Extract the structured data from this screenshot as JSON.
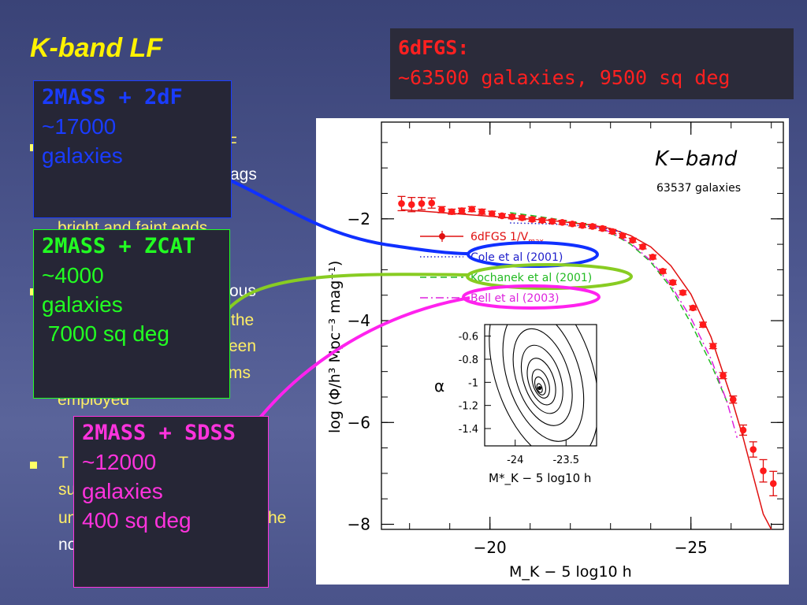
{
  "slide": {
    "title": "K-band LF"
  },
  "survey_box": {
    "title": "6dFGS:",
    "stats": "~63500 galaxies, 9500 sq deg"
  },
  "background_text": {
    "line_a": "F",
    "line_b": "ags",
    "line_c": "bright and faint ends",
    "line_d": "ous",
    "line_e": "the",
    "line_f": "een",
    "line_g": "ms",
    "line_h": "employed",
    "line_i": "T",
    "line_j": "su",
    "line_k": "un",
    "line_l": "he",
    "line_m": "no"
  },
  "callouts": [
    {
      "id": "sdf",
      "heading": "2MASS + 2dF",
      "line1": "~17000",
      "line2": "galaxies",
      "line3": "",
      "color": "#1a3cff"
    },
    {
      "id": "zcat",
      "heading": "2MASS + ZCAT",
      "line1": "~4000",
      "line2": "galaxies",
      "line3": " 7000 sq deg",
      "color": "#22ff22"
    },
    {
      "id": "sdss",
      "heading": "2MASS + SDSS",
      "line1": "~12000",
      "line2": "galaxies",
      "line3": "400 sq deg",
      "color": "#ff33dd"
    }
  ],
  "chart_data": {
    "type": "line",
    "title": "K−band",
    "subtitle": "63537 galaxies",
    "xlabel": "M_K − 5 log10 h",
    "ylabel": "log (Φ/h³ Mpc⁻³ mag⁻¹)",
    "xlim": [
      -17.3,
      -27.3
    ],
    "ylim": [
      -8.1,
      -0.1
    ],
    "x_ticks": [
      {
        "v": -20,
        "label": "−20"
      },
      {
        "v": -25,
        "label": "−25"
      }
    ],
    "y_ticks": [
      {
        "v": -2,
        "label": "−2"
      },
      {
        "v": -4,
        "label": "−4"
      },
      {
        "v": -6,
        "label": "−6"
      },
      {
        "v": -8,
        "label": "−8"
      }
    ],
    "legend": [
      {
        "label": "6dFGS 1/V",
        "sub": "max",
        "color": "#e01010",
        "style": "points"
      },
      {
        "label": "Cole et al (2001)",
        "color": "#2020cc",
        "style": "dotted"
      },
      {
        "label": "Kochanek et al (2001)",
        "color": "#22bb22",
        "style": "dashed"
      },
      {
        "label": "Bell et al (2003)",
        "color": "#dd22dd",
        "style": "dashdot"
      }
    ],
    "points": {
      "name": "6dFGS 1/V max",
      "x": [
        -17.8,
        -18.05,
        -18.3,
        -18.55,
        -18.8,
        -19.05,
        -19.3,
        -19.55,
        -19.8,
        -20.05,
        -20.3,
        -20.55,
        -20.8,
        -21.05,
        -21.3,
        -21.55,
        -21.8,
        -22.05,
        -22.3,
        -22.55,
        -22.8,
        -23.05,
        -23.3,
        -23.55,
        -23.8,
        -24.05,
        -24.3,
        -24.55,
        -24.8,
        -25.05,
        -25.3,
        -25.55,
        -25.8,
        -26.05,
        -26.3,
        -26.55,
        -26.8,
        -27.05
      ],
      "y": [
        -1.7,
        -1.72,
        -1.7,
        -1.69,
        -1.82,
        -1.86,
        -1.84,
        -1.81,
        -1.86,
        -1.9,
        -1.94,
        -1.96,
        -1.98,
        -2.01,
        -2.03,
        -2.05,
        -2.07,
        -2.1,
        -2.13,
        -2.15,
        -2.19,
        -2.25,
        -2.33,
        -2.42,
        -2.55,
        -2.75,
        -3.03,
        -3.25,
        -3.45,
        -3.75,
        -4.08,
        -4.5,
        -5.08,
        -5.55,
        -6.15,
        -6.53,
        -6.95,
        -7.2
      ],
      "err": [
        0.14,
        0.14,
        0.12,
        0.1,
        0.06,
        0.05,
        0.05,
        0.05,
        0.05,
        0.05,
        0.04,
        0.04,
        0.04,
        0.04,
        0.04,
        0.04,
        0.04,
        0.04,
        0.04,
        0.04,
        0.04,
        0.04,
        0.04,
        0.04,
        0.04,
        0.04,
        0.04,
        0.04,
        0.04,
        0.04,
        0.05,
        0.05,
        0.06,
        0.07,
        0.1,
        0.15,
        0.22,
        0.24
      ]
    },
    "series": [
      {
        "name": "6dFGS fit",
        "color": "#e01010",
        "style": "solid",
        "x": [
          -17.8,
          -18.5,
          -19.5,
          -20.5,
          -21.5,
          -22.5,
          -23.0,
          -23.5,
          -24.0,
          -24.5,
          -25.0,
          -25.5,
          -26.0,
          -26.3,
          -26.6,
          -26.8,
          -27.0
        ],
        "y": [
          -1.82,
          -1.86,
          -1.92,
          -1.98,
          -2.03,
          -2.12,
          -2.19,
          -2.33,
          -2.55,
          -2.92,
          -3.48,
          -4.32,
          -5.5,
          -6.3,
          -7.2,
          -7.8,
          -8.1
        ]
      },
      {
        "name": "Cole et al (2001)",
        "color": "#2020cc",
        "style": "dotted",
        "x": [
          -20.5,
          -21.0,
          -21.5,
          -22.0,
          -22.5,
          -23.0,
          -23.3
        ],
        "y": [
          -2.08,
          -2.09,
          -2.1,
          -2.12,
          -2.15,
          -2.21,
          -2.26
        ]
      },
      {
        "name": "Kochanek et al (2001)",
        "color": "#22bb22",
        "style": "dashed",
        "x": [
          -20.5,
          -21.0,
          -21.5,
          -22.0,
          -22.5,
          -23.0,
          -23.5,
          -24.0,
          -24.5,
          -25.0,
          -25.5,
          -25.9
        ],
        "y": [
          -1.88,
          -1.93,
          -1.99,
          -2.05,
          -2.13,
          -2.27,
          -2.5,
          -2.85,
          -3.35,
          -4.05,
          -4.85,
          -5.6
        ]
      },
      {
        "name": "Bell et al (2003)",
        "color": "#dd22dd",
        "style": "dashdot",
        "x": [
          -22.5,
          -23.0,
          -23.5,
          -24.0,
          -24.5,
          -25.0,
          -25.5,
          -25.9,
          -26.15
        ],
        "y": [
          -2.12,
          -2.26,
          -2.48,
          -2.82,
          -3.3,
          -3.95,
          -4.75,
          -5.6,
          -6.3
        ]
      }
    ],
    "inset": {
      "xlabel": "M*_K − 5 log10 h",
      "ylabel": "α",
      "x_ticks": [
        {
          "v": -24,
          "label": "-24"
        },
        {
          "v": -23.5,
          "label": "-23.5"
        }
      ],
      "y_ticks": [
        {
          "v": -0.6,
          "label": "-0.6"
        },
        {
          "v": -0.8,
          "label": "-0.8"
        },
        {
          "v": -1.0,
          "label": "-1"
        },
        {
          "v": -1.2,
          "label": "-1.2"
        },
        {
          "v": -1.4,
          "label": "-1.4"
        }
      ],
      "xlim": [
        -24.3,
        -23.2
      ],
      "ylim": [
        -1.55,
        -0.5
      ],
      "center": [
        -23.76,
        -1.05
      ],
      "contours": 8
    }
  },
  "annotations": {
    "highlight_ellipses": [
      {
        "target": "Cole et al (2001)",
        "color": "#1030ff"
      },
      {
        "target": "Kochanek et al (2001)",
        "color": "#88cc22"
      },
      {
        "target": "Bell et al (2003)",
        "color": "#ff22ee"
      }
    ]
  }
}
